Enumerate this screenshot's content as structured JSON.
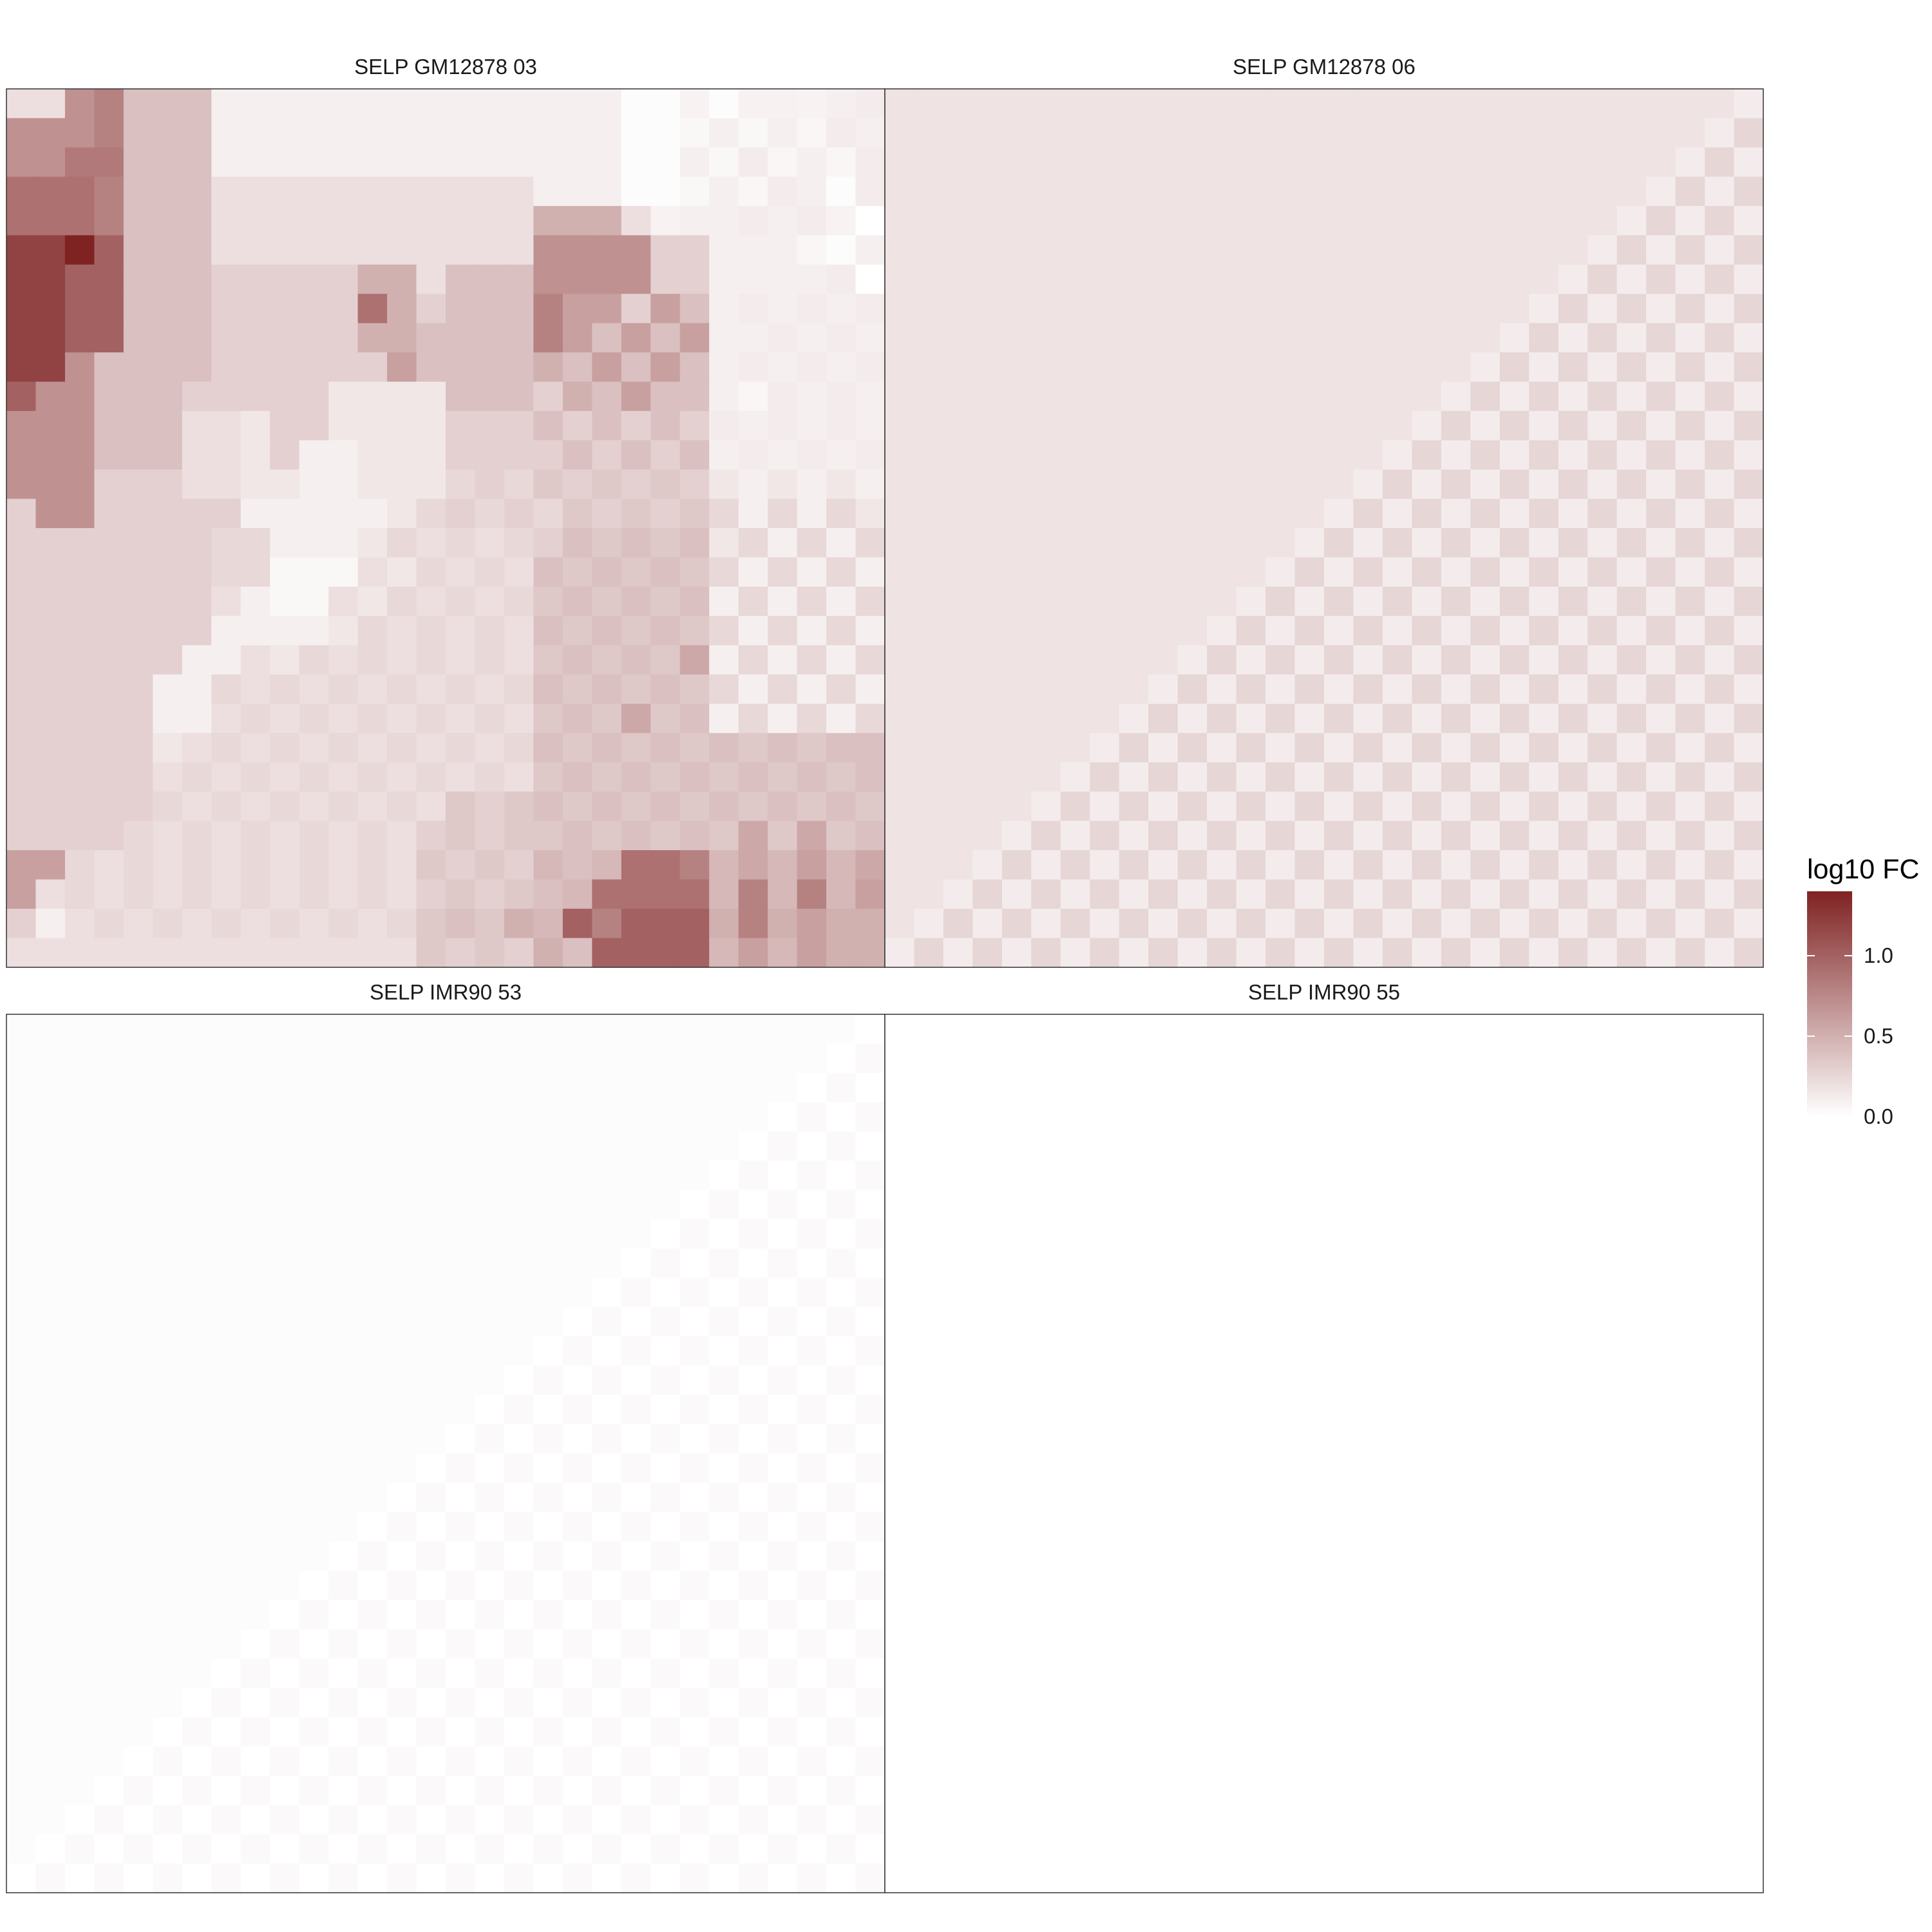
{
  "chart_data": {
    "type": "heatmap",
    "grid": {
      "rows": 30,
      "cols": 30
    },
    "color_scale": {
      "low": "#ffffff",
      "high": "#7f2222",
      "min": 0.0,
      "max": 1.4
    },
    "legend": {
      "title": "log10 FC",
      "ticks": [
        {
          "value": 0.0,
          "label": "0.0"
        },
        {
          "value": 0.5,
          "label": "0.5"
        },
        {
          "value": 1.0,
          "label": "1.0"
        }
      ],
      "placement": "right"
    },
    "facets": [
      {
        "title": "SELP GM12878 03",
        "values": [
          [
            0.2,
            0.2,
            0.7,
            0.8,
            0.4,
            0.4,
            0.4,
            0.1,
            0.1,
            0.1,
            0.1,
            0.1,
            0.1,
            0.1,
            0.1,
            0.1,
            0.1,
            0.1,
            0.1,
            0.1,
            0.1,
            0.02,
            0.02,
            0.08,
            0.02,
            0.09,
            0.09,
            0.08,
            0.1,
            0.12
          ],
          [
            0.7,
            0.7,
            0.7,
            0.8,
            0.4,
            0.4,
            0.4,
            0.1,
            0.1,
            0.1,
            0.1,
            0.1,
            0.1,
            0.1,
            0.1,
            0.1,
            0.1,
            0.1,
            0.1,
            0.1,
            0.1,
            0.02,
            0.02,
            0.05,
            0.1,
            0.05,
            0.1,
            0.06,
            0.12,
            0.1
          ],
          [
            0.7,
            0.7,
            0.85,
            0.85,
            0.4,
            0.4,
            0.4,
            0.1,
            0.1,
            0.1,
            0.1,
            0.1,
            0.1,
            0.1,
            0.1,
            0.1,
            0.1,
            0.1,
            0.1,
            0.1,
            0.1,
            0.02,
            0.02,
            0.1,
            0.05,
            0.12,
            0.06,
            0.1,
            0.06,
            0.12
          ],
          [
            0.9,
            0.9,
            0.9,
            0.8,
            0.4,
            0.4,
            0.4,
            0.2,
            0.2,
            0.2,
            0.2,
            0.2,
            0.2,
            0.2,
            0.2,
            0.2,
            0.2,
            0.2,
            0.1,
            0.1,
            0.1,
            0.02,
            0.02,
            0.05,
            0.1,
            0.06,
            0.12,
            0.1,
            0.02,
            0.12
          ],
          [
            0.9,
            0.9,
            0.9,
            0.8,
            0.4,
            0.4,
            0.4,
            0.2,
            0.2,
            0.2,
            0.2,
            0.2,
            0.2,
            0.2,
            0.2,
            0.2,
            0.2,
            0.2,
            0.5,
            0.5,
            0.5,
            0.2,
            0.08,
            0.1,
            0.1,
            0.12,
            0.1,
            0.12,
            0.08,
            0.0
          ],
          [
            1.2,
            1.2,
            1.4,
            1.0,
            0.4,
            0.4,
            0.4,
            0.2,
            0.2,
            0.2,
            0.2,
            0.2,
            0.2,
            0.2,
            0.2,
            0.2,
            0.2,
            0.2,
            0.7,
            0.7,
            0.7,
            0.7,
            0.3,
            0.3,
            0.1,
            0.1,
            0.1,
            0.06,
            0.02,
            0.1
          ],
          [
            1.2,
            1.2,
            1.0,
            1.0,
            0.4,
            0.4,
            0.4,
            0.3,
            0.3,
            0.3,
            0.3,
            0.3,
            0.5,
            0.5,
            0.2,
            0.4,
            0.4,
            0.4,
            0.7,
            0.7,
            0.7,
            0.7,
            0.3,
            0.3,
            0.1,
            0.1,
            0.1,
            0.1,
            0.12,
            0.0
          ],
          [
            1.2,
            1.2,
            1.0,
            1.0,
            0.4,
            0.4,
            0.4,
            0.3,
            0.3,
            0.3,
            0.3,
            0.3,
            0.9,
            0.5,
            0.3,
            0.4,
            0.4,
            0.4,
            0.8,
            0.6,
            0.6,
            0.3,
            0.6,
            0.4,
            0.1,
            0.12,
            0.1,
            0.12,
            0.1,
            0.12
          ],
          [
            1.2,
            1.2,
            1.0,
            1.0,
            0.4,
            0.4,
            0.4,
            0.3,
            0.3,
            0.3,
            0.3,
            0.3,
            0.5,
            0.5,
            0.4,
            0.4,
            0.4,
            0.4,
            0.8,
            0.6,
            0.4,
            0.6,
            0.4,
            0.6,
            0.1,
            0.1,
            0.12,
            0.1,
            0.12,
            0.1
          ],
          [
            1.2,
            1.2,
            0.7,
            0.4,
            0.4,
            0.4,
            0.4,
            0.3,
            0.3,
            0.3,
            0.3,
            0.3,
            0.3,
            0.6,
            0.4,
            0.4,
            0.4,
            0.4,
            0.5,
            0.4,
            0.6,
            0.4,
            0.6,
            0.4,
            0.1,
            0.12,
            0.1,
            0.12,
            0.1,
            0.12
          ],
          [
            1.0,
            0.7,
            0.7,
            0.4,
            0.4,
            0.4,
            0.3,
            0.3,
            0.3,
            0.3,
            0.3,
            0.15,
            0.15,
            0.15,
            0.15,
            0.4,
            0.4,
            0.4,
            0.3,
            0.5,
            0.4,
            0.6,
            0.4,
            0.4,
            0.1,
            0.06,
            0.12,
            0.1,
            0.12,
            0.1
          ],
          [
            0.7,
            0.7,
            0.7,
            0.4,
            0.4,
            0.4,
            0.2,
            0.2,
            0.15,
            0.3,
            0.3,
            0.15,
            0.15,
            0.15,
            0.15,
            0.3,
            0.3,
            0.3,
            0.4,
            0.3,
            0.4,
            0.3,
            0.4,
            0.3,
            0.12,
            0.1,
            0.12,
            0.1,
            0.12,
            0.1
          ],
          [
            0.7,
            0.7,
            0.7,
            0.4,
            0.4,
            0.4,
            0.2,
            0.2,
            0.15,
            0.3,
            0.1,
            0.1,
            0.15,
            0.15,
            0.15,
            0.3,
            0.3,
            0.3,
            0.3,
            0.4,
            0.3,
            0.4,
            0.3,
            0.4,
            0.1,
            0.12,
            0.1,
            0.12,
            0.1,
            0.12
          ],
          [
            0.7,
            0.7,
            0.7,
            0.3,
            0.3,
            0.3,
            0.2,
            0.2,
            0.15,
            0.15,
            0.1,
            0.1,
            0.15,
            0.15,
            0.15,
            0.25,
            0.3,
            0.25,
            0.35,
            0.3,
            0.35,
            0.3,
            0.35,
            0.3,
            0.15,
            0.1,
            0.15,
            0.1,
            0.15,
            0.1
          ],
          [
            0.3,
            0.7,
            0.7,
            0.3,
            0.3,
            0.3,
            0.3,
            0.3,
            0.1,
            0.1,
            0.1,
            0.1,
            0.1,
            0.15,
            0.25,
            0.3,
            0.25,
            0.3,
            0.25,
            0.35,
            0.3,
            0.35,
            0.3,
            0.35,
            0.25,
            0.1,
            0.25,
            0.1,
            0.25,
            0.15
          ],
          [
            0.3,
            0.3,
            0.3,
            0.3,
            0.3,
            0.3,
            0.3,
            0.25,
            0.25,
            0.1,
            0.1,
            0.1,
            0.15,
            0.25,
            0.2,
            0.25,
            0.2,
            0.25,
            0.3,
            0.4,
            0.35,
            0.4,
            0.35,
            0.4,
            0.15,
            0.25,
            0.1,
            0.25,
            0.1,
            0.25
          ],
          [
            0.3,
            0.3,
            0.3,
            0.3,
            0.3,
            0.3,
            0.3,
            0.25,
            0.25,
            0.05,
            0.05,
            0.05,
            0.2,
            0.15,
            0.25,
            0.2,
            0.25,
            0.2,
            0.4,
            0.35,
            0.4,
            0.35,
            0.4,
            0.35,
            0.25,
            0.1,
            0.25,
            0.1,
            0.25,
            0.1
          ],
          [
            0.3,
            0.3,
            0.3,
            0.3,
            0.3,
            0.3,
            0.3,
            0.2,
            0.1,
            0.05,
            0.05,
            0.2,
            0.15,
            0.25,
            0.2,
            0.25,
            0.2,
            0.25,
            0.35,
            0.4,
            0.35,
            0.4,
            0.35,
            0.4,
            0.1,
            0.25,
            0.1,
            0.25,
            0.1,
            0.25
          ],
          [
            0.3,
            0.3,
            0.3,
            0.3,
            0.3,
            0.3,
            0.3,
            0.1,
            0.1,
            0.1,
            0.1,
            0.15,
            0.25,
            0.2,
            0.25,
            0.2,
            0.25,
            0.2,
            0.4,
            0.35,
            0.4,
            0.35,
            0.4,
            0.35,
            0.25,
            0.1,
            0.25,
            0.1,
            0.25,
            0.1
          ],
          [
            0.3,
            0.3,
            0.3,
            0.3,
            0.3,
            0.3,
            0.1,
            0.1,
            0.2,
            0.15,
            0.25,
            0.2,
            0.25,
            0.2,
            0.25,
            0.2,
            0.25,
            0.2,
            0.35,
            0.4,
            0.35,
            0.4,
            0.35,
            0.55,
            0.1,
            0.25,
            0.1,
            0.25,
            0.1,
            0.25
          ],
          [
            0.3,
            0.3,
            0.3,
            0.3,
            0.3,
            0.1,
            0.1,
            0.25,
            0.2,
            0.25,
            0.2,
            0.25,
            0.2,
            0.25,
            0.2,
            0.25,
            0.2,
            0.25,
            0.4,
            0.35,
            0.4,
            0.35,
            0.4,
            0.35,
            0.25,
            0.1,
            0.25,
            0.1,
            0.25,
            0.1
          ],
          [
            0.3,
            0.3,
            0.3,
            0.3,
            0.3,
            0.1,
            0.1,
            0.2,
            0.25,
            0.2,
            0.25,
            0.2,
            0.25,
            0.2,
            0.25,
            0.2,
            0.25,
            0.2,
            0.35,
            0.4,
            0.35,
            0.55,
            0.35,
            0.4,
            0.1,
            0.25,
            0.1,
            0.25,
            0.1,
            0.25
          ],
          [
            0.3,
            0.3,
            0.3,
            0.3,
            0.3,
            0.15,
            0.2,
            0.25,
            0.2,
            0.25,
            0.2,
            0.25,
            0.2,
            0.25,
            0.2,
            0.25,
            0.2,
            0.25,
            0.4,
            0.35,
            0.4,
            0.35,
            0.4,
            0.35,
            0.4,
            0.35,
            0.4,
            0.35,
            0.4,
            0.4
          ],
          [
            0.3,
            0.3,
            0.3,
            0.3,
            0.3,
            0.2,
            0.25,
            0.2,
            0.25,
            0.2,
            0.25,
            0.2,
            0.25,
            0.2,
            0.25,
            0.2,
            0.25,
            0.2,
            0.35,
            0.4,
            0.35,
            0.4,
            0.35,
            0.4,
            0.35,
            0.4,
            0.35,
            0.4,
            0.35,
            0.4
          ],
          [
            0.3,
            0.3,
            0.3,
            0.3,
            0.3,
            0.25,
            0.2,
            0.25,
            0.2,
            0.25,
            0.2,
            0.25,
            0.2,
            0.25,
            0.2,
            0.35,
            0.3,
            0.35,
            0.4,
            0.35,
            0.4,
            0.35,
            0.4,
            0.35,
            0.4,
            0.35,
            0.4,
            0.35,
            0.4,
            0.35
          ],
          [
            0.3,
            0.3,
            0.3,
            0.3,
            0.25,
            0.2,
            0.25,
            0.2,
            0.25,
            0.2,
            0.25,
            0.2,
            0.25,
            0.2,
            0.3,
            0.35,
            0.3,
            0.35,
            0.35,
            0.4,
            0.35,
            0.4,
            0.35,
            0.4,
            0.35,
            0.55,
            0.35,
            0.55,
            0.35,
            0.4
          ],
          [
            0.6,
            0.6,
            0.25,
            0.2,
            0.25,
            0.2,
            0.25,
            0.2,
            0.25,
            0.2,
            0.25,
            0.2,
            0.25,
            0.2,
            0.35,
            0.3,
            0.35,
            0.3,
            0.45,
            0.4,
            0.45,
            0.9,
            0.9,
            0.8,
            0.45,
            0.55,
            0.45,
            0.6,
            0.45,
            0.55
          ],
          [
            0.6,
            0.2,
            0.25,
            0.2,
            0.25,
            0.2,
            0.25,
            0.2,
            0.25,
            0.2,
            0.25,
            0.2,
            0.25,
            0.2,
            0.3,
            0.35,
            0.3,
            0.35,
            0.4,
            0.45,
            0.9,
            0.9,
            0.9,
            0.9,
            0.45,
            0.8,
            0.45,
            0.8,
            0.45,
            0.6
          ],
          [
            0.3,
            0.1,
            0.2,
            0.25,
            0.2,
            0.25,
            0.2,
            0.25,
            0.2,
            0.25,
            0.2,
            0.25,
            0.2,
            0.25,
            0.35,
            0.4,
            0.35,
            0.5,
            0.45,
            1.0,
            0.8,
            1.0,
            1.0,
            1.0,
            0.5,
            0.8,
            0.5,
            0.6,
            0.5,
            0.5
          ],
          [
            0.2,
            0.2,
            0.2,
            0.2,
            0.2,
            0.2,
            0.2,
            0.2,
            0.2,
            0.2,
            0.2,
            0.2,
            0.2,
            0.2,
            0.35,
            0.3,
            0.35,
            0.3,
            0.5,
            0.4,
            1.0,
            1.0,
            1.0,
            1.0,
            0.45,
            0.6,
            0.45,
            0.6,
            0.5,
            0.5
          ]
        ]
      },
      {
        "title": "SELP GM12878 06",
        "pattern": "upper-left uniform 0.18; lower-right checkerboard alternating 0.26 and 0.12",
        "upper_value": 0.18,
        "checker_values": [
          0.26,
          0.12
        ]
      },
      {
        "title": "SELP IMR90 53",
        "pattern": "upper-left uniform 0.02; lower-right checkerboard alternating 0.04 and 0.0",
        "upper_value": 0.02,
        "checker_values": [
          0.04,
          0.0
        ]
      },
      {
        "title": "SELP IMR90 55",
        "pattern": "uniform 0.0",
        "upper_value": 0.0,
        "checker_values": [
          0.0,
          0.0
        ]
      }
    ]
  }
}
